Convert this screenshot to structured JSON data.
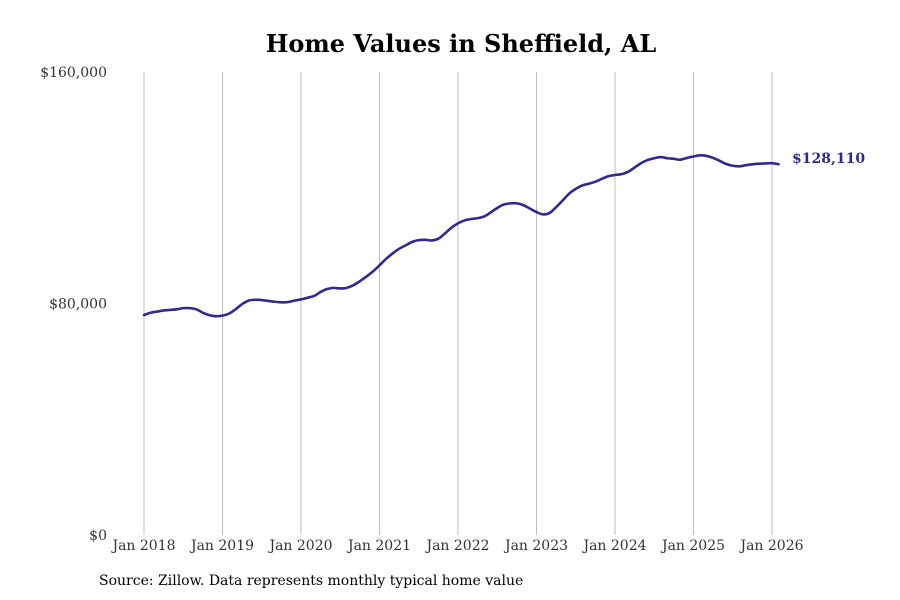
{
  "chart_data": {
    "type": "line",
    "title": "Home Values in Sheffield, AL",
    "xlabel": "",
    "ylabel": "",
    "ylim": [
      0,
      160000
    ],
    "y_ticks": [
      {
        "value": 0,
        "label": "$0"
      },
      {
        "value": 80000,
        "label": "$80,000"
      },
      {
        "value": 160000,
        "label": "$160,000"
      }
    ],
    "x_range": [
      2018.0,
      2026.0
    ],
    "x_ticks": [
      {
        "value": 2018,
        "label": "Jan 2018"
      },
      {
        "value": 2019,
        "label": "Jan 2019"
      },
      {
        "value": 2020,
        "label": "Jan 2020"
      },
      {
        "value": 2021,
        "label": "Jan 2021"
      },
      {
        "value": 2022,
        "label": "Jan 2022"
      },
      {
        "value": 2023,
        "label": "Jan 2023"
      },
      {
        "value": 2024,
        "label": "Jan 2024"
      },
      {
        "value": 2025,
        "label": "Jan 2025"
      },
      {
        "value": 2026,
        "label": "Jan 2026"
      }
    ],
    "grid": "vertical",
    "series": [
      {
        "name": "Typical home value",
        "color": "#2e2a8f",
        "end_label": "$128,110",
        "x": [
          2018.0,
          2018.083,
          2018.167,
          2018.25,
          2018.333,
          2018.417,
          2018.5,
          2018.583,
          2018.667,
          2018.75,
          2018.833,
          2018.917,
          2019.0,
          2019.083,
          2019.167,
          2019.25,
          2019.333,
          2019.417,
          2019.5,
          2019.583,
          2019.667,
          2019.75,
          2019.833,
          2019.917,
          2020.0,
          2020.083,
          2020.167,
          2020.25,
          2020.333,
          2020.417,
          2020.5,
          2020.583,
          2020.667,
          2020.75,
          2020.833,
          2020.917,
          2021.0,
          2021.083,
          2021.167,
          2021.25,
          2021.333,
          2021.417,
          2021.5,
          2021.583,
          2021.667,
          2021.75,
          2021.833,
          2021.917,
          2022.0,
          2022.083,
          2022.167,
          2022.25,
          2022.333,
          2022.417,
          2022.5,
          2022.583,
          2022.667,
          2022.75,
          2022.833,
          2022.917,
          2023.0,
          2023.083,
          2023.167,
          2023.25,
          2023.333,
          2023.417,
          2023.5,
          2023.583,
          2023.667,
          2023.75,
          2023.833,
          2023.917,
          2024.0,
          2024.083,
          2024.167,
          2024.25,
          2024.333,
          2024.417,
          2024.5,
          2024.583,
          2024.667,
          2024.75,
          2024.833,
          2024.917,
          2025.0,
          2025.083,
          2025.167,
          2025.25,
          2025.333,
          2025.417,
          2025.5,
          2025.583,
          2025.667,
          2025.75,
          2025.833,
          2025.917,
          2026.0,
          2026.083
        ],
        "values": [
          76000,
          76800,
          77200,
          77600,
          77800,
          78000,
          78400,
          78400,
          78000,
          76800,
          76000,
          75600,
          75800,
          76500,
          78000,
          79800,
          81000,
          81300,
          81200,
          80900,
          80600,
          80400,
          80500,
          81000,
          81400,
          82000,
          82600,
          84000,
          85000,
          85400,
          85200,
          85400,
          86300,
          87700,
          89300,
          91100,
          93200,
          95400,
          97300,
          98900,
          100100,
          101300,
          101900,
          102000,
          101800,
          102400,
          104200,
          106200,
          107700,
          108700,
          109200,
          109500,
          110100,
          111500,
          113000,
          114200,
          114600,
          114600,
          114000,
          112800,
          111600,
          110800,
          111300,
          113300,
          115600,
          118000,
          119600,
          120800,
          121400,
          122100,
          123100,
          124000,
          124400,
          124700,
          125500,
          127000,
          128500,
          129600,
          130200,
          130600,
          130200,
          130000,
          129700,
          130300,
          130800,
          131200,
          131000,
          130300,
          129300,
          128200,
          127600,
          127400,
          127800,
          128100,
          128300,
          128400,
          128500,
          128110
        ]
      }
    ]
  },
  "footer": {
    "source": "Source: Zillow. Data represents monthly typical home value"
  }
}
